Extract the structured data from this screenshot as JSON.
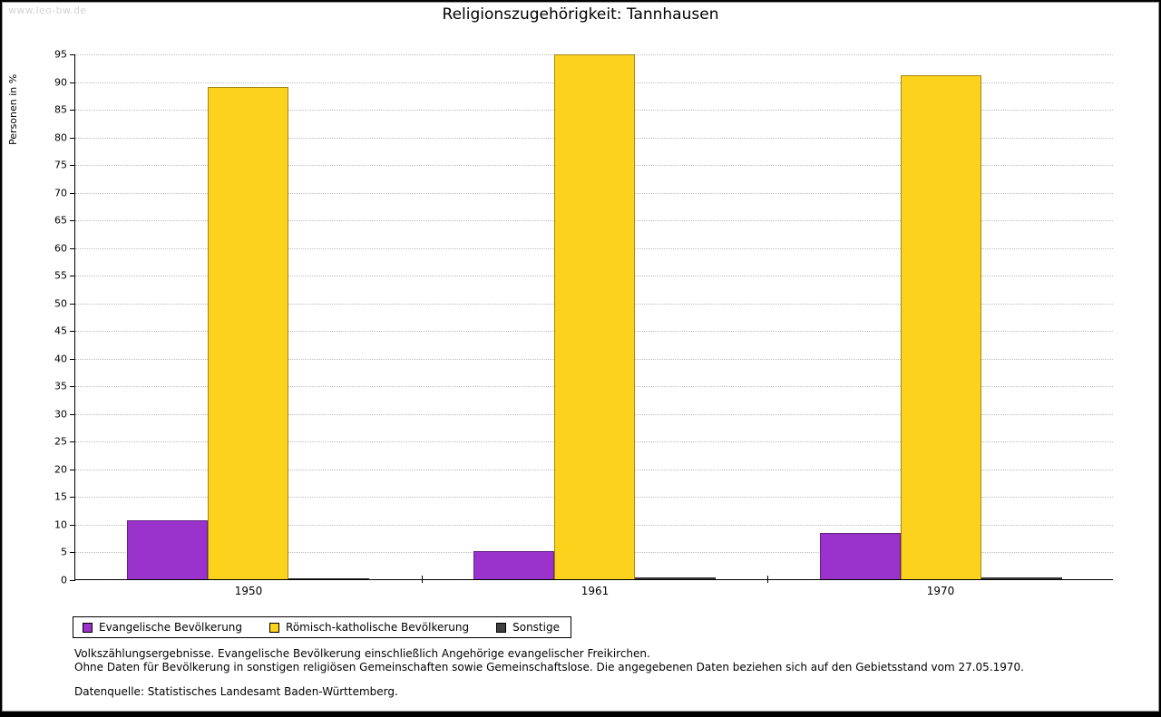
{
  "watermark": "www.leo-bw.de",
  "chart_data": {
    "type": "bar",
    "title": "Religionszugehörigkeit: Tannhausen",
    "ylabel": "Personen in %",
    "ylim": [
      0,
      95
    ],
    "ytick_step": 5,
    "grid": "horizontal-dotted",
    "legend_position": "bottom-left",
    "categories": [
      "1950",
      "1961",
      "1970"
    ],
    "series": [
      {
        "name": "Evangelische Bevölkerung",
        "color": "#9933cc",
        "values": [
          10.6,
          5.0,
          8.3
        ]
      },
      {
        "name": "Römisch-katholische Bevölkerung",
        "color": "#fcd21c",
        "values": [
          89.0,
          94.8,
          91.1
        ]
      },
      {
        "name": "Sonstige",
        "color": "#404040",
        "values": [
          0.2,
          0.3,
          0.3
        ]
      }
    ]
  },
  "footer": {
    "line1": "Volkszählungsergebnisse. Evangelische Bevölkerung einschließlich Angehörige evangelischer Freikirchen.",
    "line2": "Ohne Daten für Bevölkerung in sonstigen religiösen Gemeinschaften sowie Gemeinschaftslose. Die angegebenen Daten beziehen sich auf den Gebietsstand vom 27.05.1970.",
    "line3": "Datenquelle: Statistisches Landesamt Baden-Württemberg."
  }
}
